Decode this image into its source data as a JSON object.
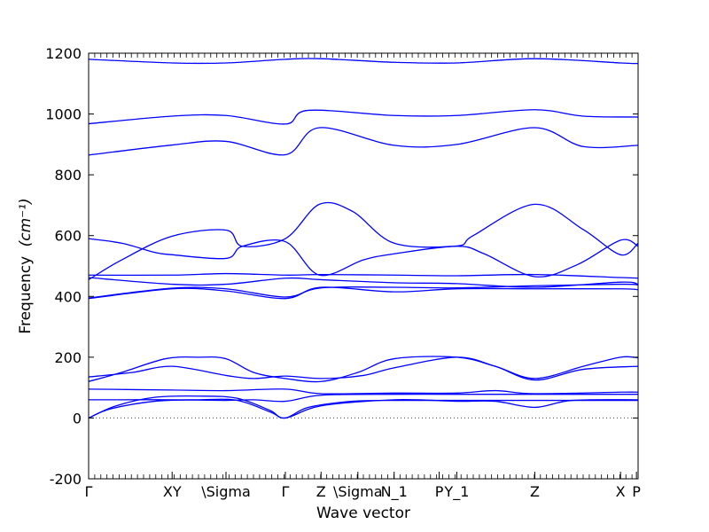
{
  "chart_data": {
    "type": "line",
    "xlabel": "Wave vector",
    "ylabel": "Frequency",
    "ylabel_unit": "(cm⁻¹)",
    "ylim": [
      -200,
      1200
    ],
    "yticks": [
      -200,
      0,
      200,
      400,
      600,
      800,
      1000,
      1200
    ],
    "xlim": [
      0,
      1
    ],
    "high_symmetry_points": [
      {
        "label": "Γ",
        "x": 0.0
      },
      {
        "label": "XY",
        "x": 0.152
      },
      {
        "label": "\\Sigma",
        "x": 0.25
      },
      {
        "label": "Γ",
        "x": 0.358
      },
      {
        "label": "Z",
        "x": 0.423
      },
      {
        "label": "\\Sigma",
        "x": 0.49
      },
      {
        "label": "N_1",
        "x": 0.556
      },
      {
        "label": "P",
        "x": 0.638
      },
      {
        "label": "Y_1",
        "x": 0.67
      },
      {
        "label": "Z",
        "x": 0.812
      },
      {
        "label": "X",
        "x": 0.968
      },
      {
        "label": "P",
        "x": 0.997
      }
    ],
    "zero_line": true,
    "line_color": "#0000ff",
    "series": [
      {
        "x": [
          0,
          0.152,
          0.25,
          0.358,
          0.423,
          0.556,
          0.67,
          0.812,
          0.968,
          1.0
        ],
        "y": [
          1180,
          1168,
          1168,
          1180,
          1182,
          1170,
          1168,
          1182,
          1168,
          1166
        ]
      },
      {
        "x": [
          0,
          0.152,
          0.25,
          0.358,
          0.4,
          0.556,
          0.67,
          0.812,
          0.9,
          1.0
        ],
        "y": [
          968,
          993,
          995,
          967,
          1012,
          995,
          995,
          1014,
          993,
          990
        ]
      },
      {
        "x": [
          0,
          0.152,
          0.25,
          0.358,
          0.42,
          0.556,
          0.67,
          0.812,
          0.9,
          1.0
        ],
        "y": [
          865,
          898,
          910,
          866,
          955,
          897,
          900,
          955,
          893,
          897
        ]
      },
      {
        "x": [
          0,
          0.06,
          0.12,
          0.152,
          0.25,
          0.28,
          0.358,
          0.42,
          0.5,
          0.556,
          0.67,
          0.72,
          0.812,
          0.89,
          0.968,
          1.0
        ],
        "y": [
          590,
          575,
          545,
          537,
          525,
          565,
          580,
          470,
          520,
          540,
          565,
          540,
          465,
          505,
          585,
          565
        ]
      },
      {
        "x": [
          0,
          0.06,
          0.152,
          0.25,
          0.28,
          0.358,
          0.42,
          0.48,
          0.556,
          0.67,
          0.7,
          0.812,
          0.9,
          0.968,
          1.0
        ],
        "y": [
          455,
          520,
          598,
          618,
          565,
          590,
          703,
          680,
          575,
          566,
          600,
          703,
          620,
          537,
          575
        ]
      },
      {
        "x": [
          0,
          0.152,
          0.25,
          0.358,
          0.423,
          0.556,
          0.67,
          0.812,
          0.968,
          1.0
        ],
        "y": [
          470,
          470,
          475,
          470,
          472,
          470,
          468,
          472,
          462,
          460
        ]
      },
      {
        "x": [
          0,
          0.152,
          0.25,
          0.358,
          0.423,
          0.556,
          0.67,
          0.812,
          0.968,
          1.0
        ],
        "y": [
          462,
          440,
          440,
          460,
          455,
          445,
          442,
          430,
          447,
          440
        ]
      },
      {
        "x": [
          0,
          0.152,
          0.25,
          0.358,
          0.423,
          0.556,
          0.67,
          0.812,
          0.968,
          1.0
        ],
        "y": [
          393,
          425,
          418,
          393,
          430,
          415,
          425,
          425,
          425,
          422
        ]
      },
      {
        "x": [
          0,
          0.152,
          0.25,
          0.358,
          0.423,
          0.556,
          0.67,
          0.812,
          0.968,
          1.0
        ],
        "y": [
          395,
          427,
          425,
          398,
          428,
          430,
          428,
          435,
          440,
          438
        ]
      },
      {
        "x": [
          0,
          0.06,
          0.14,
          0.2,
          0.25,
          0.3,
          0.358,
          0.423,
          0.49,
          0.556,
          0.67,
          0.74,
          0.812,
          0.9,
          0.968,
          1.0
        ],
        "y": [
          120,
          150,
          195,
          200,
          195,
          150,
          130,
          120,
          150,
          195,
          200,
          170,
          130,
          170,
          200,
          198
        ]
      },
      {
        "x": [
          0,
          0.08,
          0.152,
          0.25,
          0.3,
          0.358,
          0.423,
          0.5,
          0.556,
          0.67,
          0.74,
          0.812,
          0.9,
          1.0
        ],
        "y": [
          135,
          150,
          170,
          140,
          130,
          138,
          130,
          140,
          165,
          200,
          170,
          125,
          160,
          170
        ]
      },
      {
        "x": [
          0,
          0.152,
          0.25,
          0.358,
          0.423,
          0.556,
          0.67,
          0.74,
          0.812,
          0.968,
          1.0
        ],
        "y": [
          95,
          92,
          90,
          95,
          80,
          82,
          82,
          90,
          80,
          85,
          85
        ]
      },
      {
        "x": [
          0,
          0.05,
          0.12,
          0.2,
          0.27,
          0.33,
          0.358,
          0.423,
          0.556,
          0.67,
          0.74,
          0.812,
          0.88,
          1.0
        ],
        "y": [
          0,
          40,
          68,
          72,
          65,
          25,
          0,
          40,
          60,
          55,
          55,
          35,
          58,
          60
        ]
      },
      {
        "x": [
          0,
          0.04,
          0.12,
          0.2,
          0.27,
          0.33,
          0.358,
          0.4,
          0.48,
          0.556,
          0.67,
          0.812,
          1.0
        ],
        "y": [
          0,
          30,
          55,
          60,
          58,
          20,
          0,
          35,
          55,
          58,
          58,
          58,
          58
        ]
      },
      {
        "x": [
          0,
          0.05,
          0.15,
          0.25,
          0.3,
          0.358,
          0.423,
          0.556,
          0.67,
          0.812,
          1.0
        ],
        "y": [
          60,
          60,
          60,
          58,
          60,
          55,
          75,
          78,
          78,
          78,
          78
        ]
      }
    ]
  }
}
